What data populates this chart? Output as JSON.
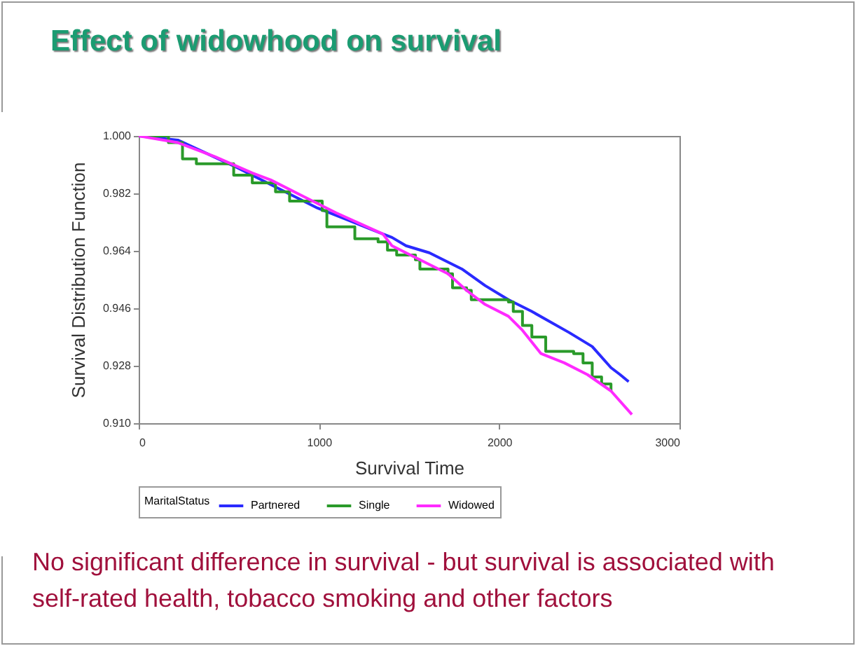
{
  "chart_data": {
    "type": "line",
    "title": "Effect of widowhood on survival",
    "xlabel": "Survival Time",
    "ylabel": "Survival Distribution Function",
    "legend_title": "MaritalStatus",
    "legend": "bottom",
    "grid": false,
    "xlim": [
      0,
      3000
    ],
    "xticks": [
      0,
      1000,
      2000,
      3000
    ],
    "ylim": [
      0.91,
      1.0
    ],
    "yticks": [
      {
        "value": 0.91,
        "label": "0.910"
      },
      0.928,
      0.946,
      0.964,
      0.982,
      {
        "value": 1.0,
        "label": "1.000"
      }
    ],
    "series": [
      {
        "name": "Partnered",
        "type": "line",
        "color": "#2a2aff",
        "x": [
          0,
          217,
          527,
          992,
          1354,
          1405,
          1483,
          1612,
          1793,
          1922,
          2051,
          2181,
          2388,
          2516,
          2620,
          2671,
          2718
        ],
        "values": [
          1.0,
          0.9987,
          0.9906,
          0.9774,
          0.9693,
          0.9682,
          0.9656,
          0.9634,
          0.9583,
          0.9531,
          0.9487,
          0.945,
          0.9384,
          0.934,
          0.9274,
          0.9252,
          0.923
        ]
      },
      {
        "name": "Single",
        "type": "step",
        "color": "#2a9a2a",
        "x": [
          0,
          101,
          165,
          243,
          320,
          527,
          630,
          759,
          837,
          1018,
          1044,
          1199,
          1328,
          1380,
          1431,
          1535,
          1560,
          1716,
          1741,
          1819,
          1845,
          2051,
          2078,
          2129,
          2181,
          2258,
          2413,
          2465,
          2516,
          2568,
          2620
        ],
        "values": [
          1.0,
          1.0,
          0.9979,
          0.9928,
          0.9913,
          0.9877,
          0.9853,
          0.9825,
          0.9796,
          0.9766,
          0.9715,
          0.9678,
          0.9668,
          0.9642,
          0.9627,
          0.9612,
          0.9583,
          0.9568,
          0.9524,
          0.9516,
          0.9487,
          0.948,
          0.945,
          0.9406,
          0.937,
          0.9325,
          0.9318,
          0.9289,
          0.9245,
          0.9223,
          0.9201
        ]
      },
      {
        "name": "Widowed",
        "type": "line",
        "color": "#ff2aff",
        "x": [
          0,
          217,
          423,
          630,
          733,
          915,
          1095,
          1354,
          1405,
          1535,
          1716,
          1819,
          1922,
          2051,
          2129,
          2232,
          2361,
          2490,
          2620,
          2736
        ],
        "values": [
          1.0,
          0.9979,
          0.9935,
          0.9884,
          0.9862,
          0.981,
          0.9759,
          0.9693,
          0.9656,
          0.9619,
          0.9568,
          0.9516,
          0.9472,
          0.9435,
          0.9391,
          0.9318,
          0.9289,
          0.9252,
          0.9201,
          0.9127
        ]
      }
    ],
    "annotations": [
      "No significant difference in survival - but survival is associated with self-rated health, tobacco smoking and other factors"
    ]
  }
}
